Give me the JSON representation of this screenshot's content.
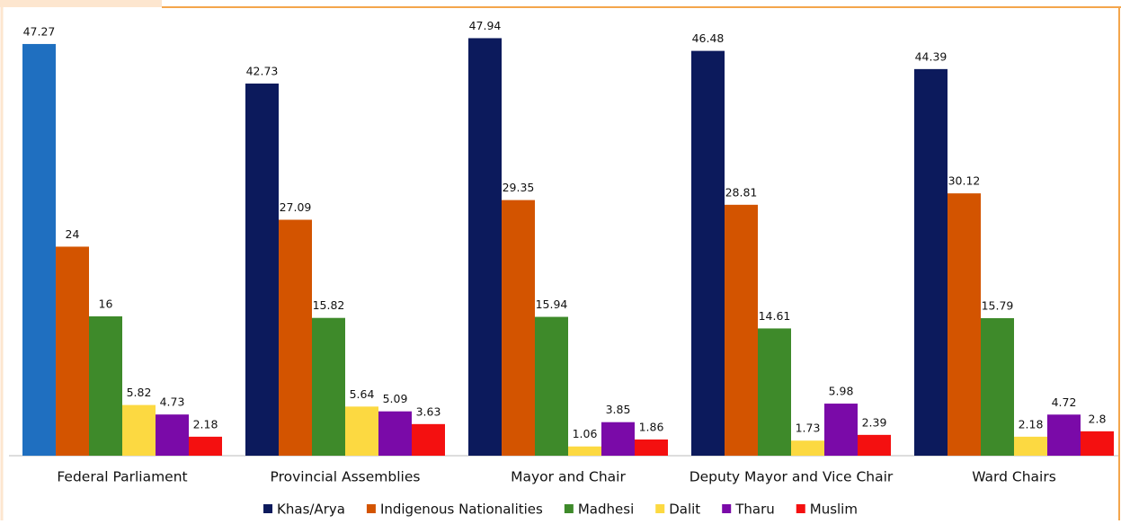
{
  "chart_data": {
    "type": "bar",
    "categories": [
      "Federal Parliament",
      "Provincial Assemblies",
      "Mayor and Chair",
      "Deputy Mayor and Vice Chair",
      "Ward Chairs"
    ],
    "series": [
      {
        "name": "Khas/Arya",
        "color": "#0c1a5c",
        "point_colors": [
          "#1f6fc0",
          "#0c1a5c",
          "#0c1a5c",
          "#0c1a5c",
          "#0c1a5c"
        ],
        "values": [
          47.27,
          42.73,
          47.94,
          46.48,
          44.39
        ]
      },
      {
        "name": "Indigenous Nationalities",
        "color": "#d35400",
        "values": [
          24,
          27.09,
          29.35,
          28.81,
          30.12
        ]
      },
      {
        "name": "Madhesi",
        "color": "#3e8a2a",
        "values": [
          16,
          15.82,
          15.94,
          14.61,
          15.79
        ]
      },
      {
        "name": "Dalit",
        "color": "#fcd941",
        "values": [
          5.82,
          5.64,
          1.06,
          1.73,
          2.18
        ]
      },
      {
        "name": "Tharu",
        "color": "#7a0aa8",
        "values": [
          4.73,
          5.09,
          3.85,
          5.98,
          4.72
        ]
      },
      {
        "name": "Muslim",
        "color": "#f41010",
        "values": [
          2.18,
          3.63,
          1.86,
          2.39,
          2.8
        ]
      }
    ],
    "ylim": [
      0,
      50
    ],
    "legend": "bottom"
  }
}
